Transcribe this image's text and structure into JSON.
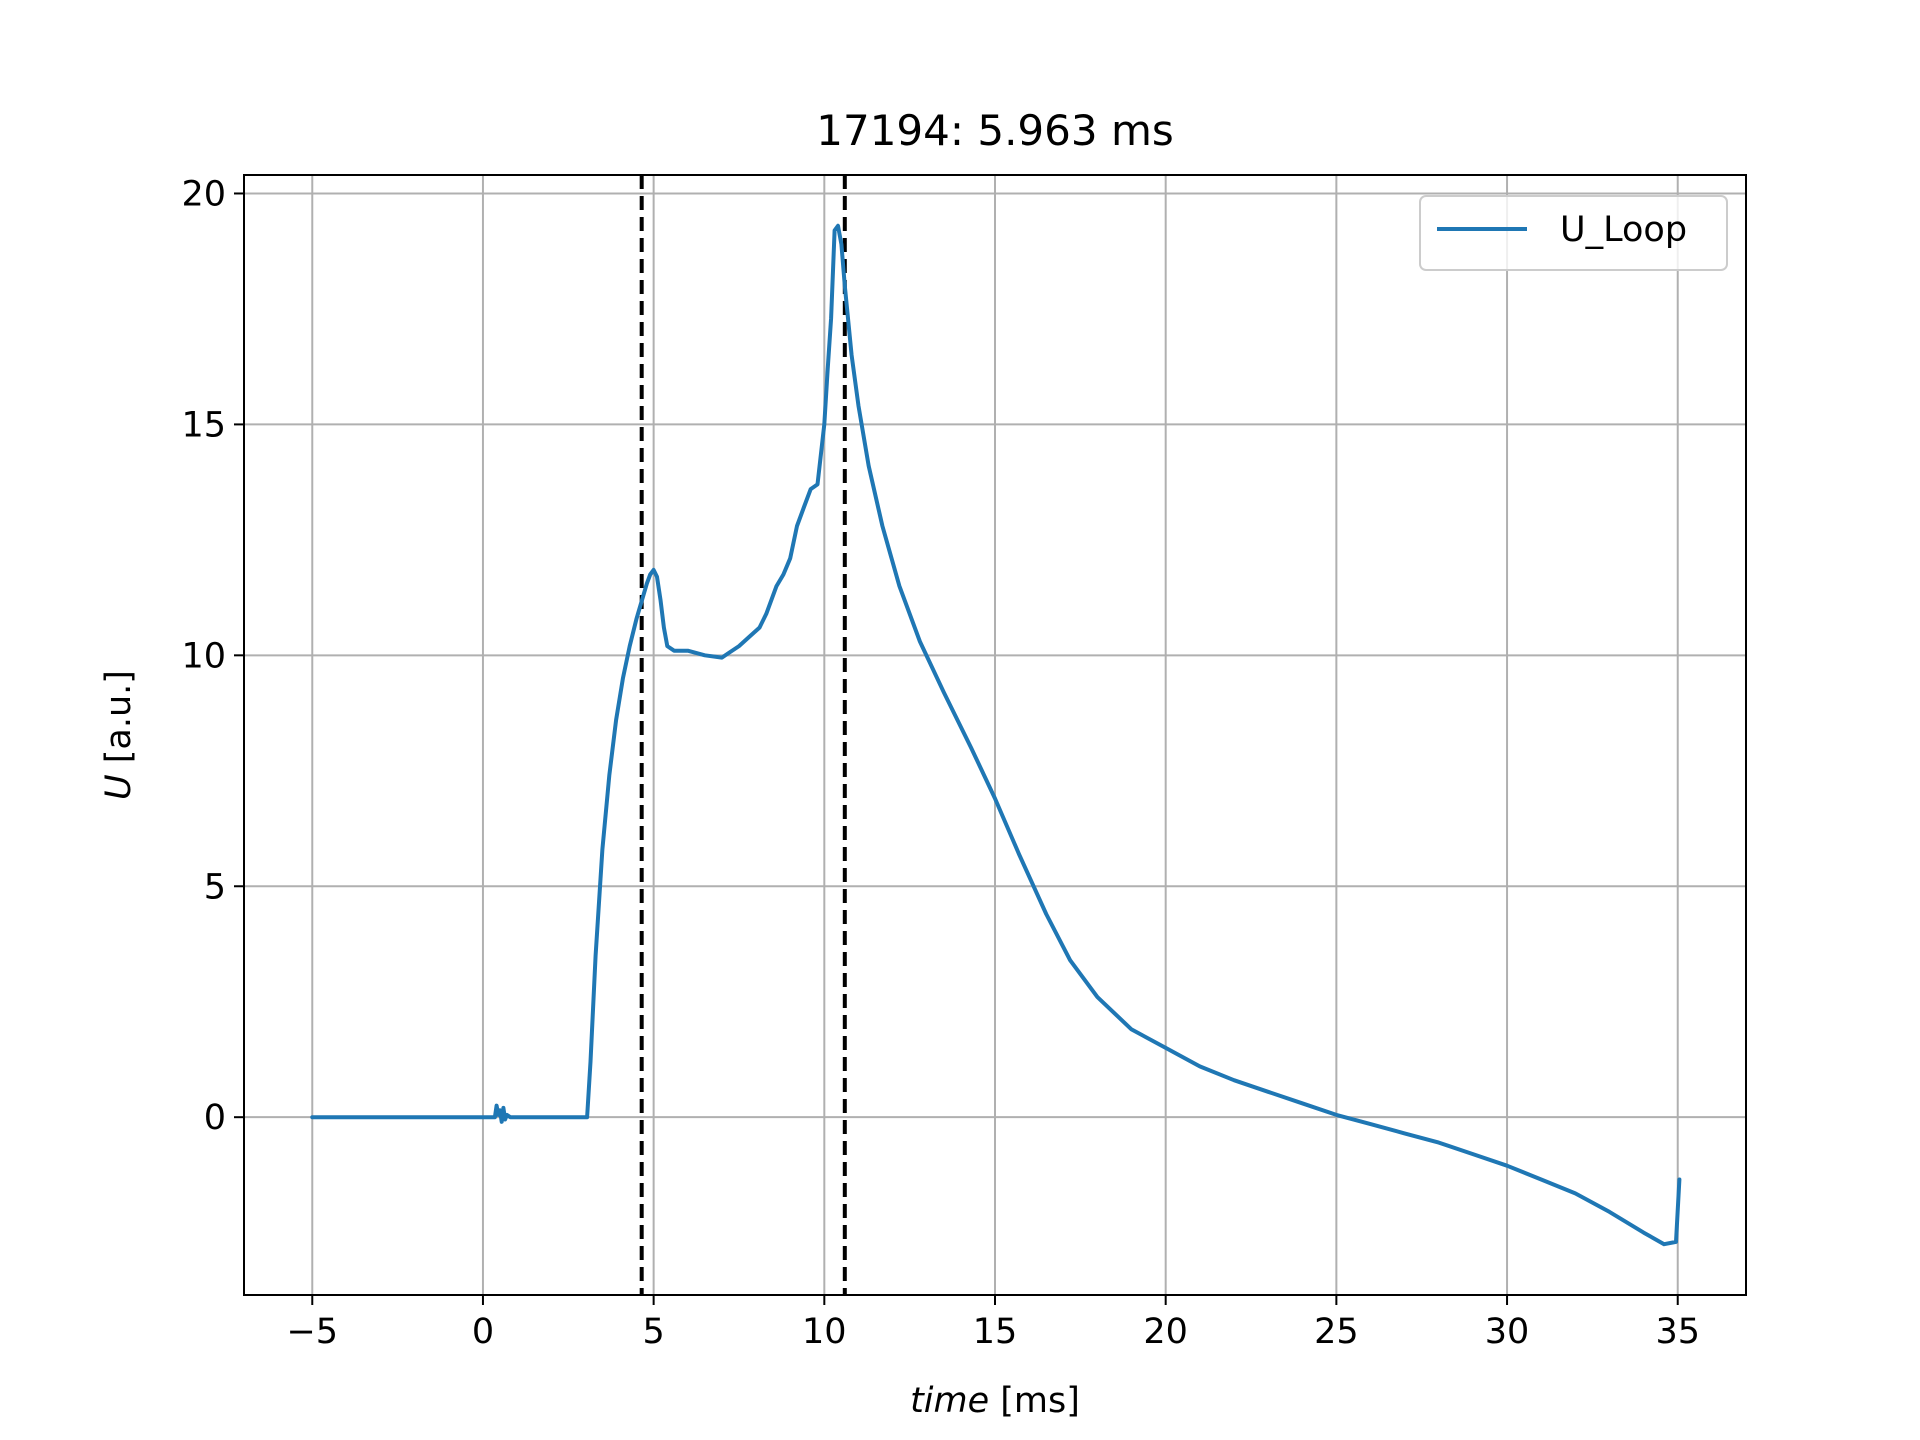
{
  "chart_data": {
    "type": "line",
    "title": "17194: 5.963 ms",
    "xlabel_italic": "time",
    "xlabel_unit": " [ms]",
    "ylabel_italic": "U",
    "ylabel_unit": " [a.u.]",
    "xlim": [
      -7,
      37
    ],
    "ylim": [
      -3.85,
      20.4
    ],
    "xticks": [
      -5,
      0,
      5,
      10,
      15,
      20,
      25,
      30,
      35
    ],
    "xtick_labels": [
      "−5",
      "0",
      "5",
      "10",
      "15",
      "20",
      "25",
      "30",
      "35"
    ],
    "yticks": [
      0,
      5,
      10,
      15,
      20
    ],
    "ytick_labels": [
      "0",
      "5",
      "10",
      "15",
      "20"
    ],
    "grid": true,
    "legend_position": "top-right",
    "series": [
      {
        "name": "U_Loop",
        "color": "#1f77b4",
        "x": [
          -5,
          -2,
          0,
          0.35,
          0.4,
          0.45,
          0.5,
          0.55,
          0.6,
          0.65,
          0.7,
          0.8,
          1.5,
          2.5,
          3.05,
          3.15,
          3.3,
          3.5,
          3.7,
          3.9,
          4.1,
          4.3,
          4.5,
          4.7,
          4.8,
          4.9,
          5.0,
          5.1,
          5.2,
          5.3,
          5.4,
          5.6,
          6.0,
          6.5,
          7.0,
          7.2,
          7.5,
          7.8,
          8.1,
          8.3,
          8.6,
          8.8,
          9.0,
          9.2,
          9.4,
          9.6,
          9.8,
          10.0,
          10.1,
          10.2,
          10.3,
          10.4,
          10.5,
          10.6,
          10.8,
          11.0,
          11.3,
          11.7,
          12.2,
          12.8,
          13.5,
          14.3,
          15.0,
          15.7,
          16.5,
          17.2,
          18.0,
          19.0,
          20.0,
          21.0,
          22.0,
          23.0,
          24.0,
          25.0,
          26.0,
          27.0,
          28.0,
          29.0,
          30.0,
          31.0,
          32.0,
          33.0,
          34.0,
          34.6,
          34.95,
          35.05
        ],
        "y": [
          0,
          0,
          0,
          0,
          0.25,
          0.05,
          0.15,
          -0.1,
          0.2,
          -0.05,
          0.05,
          0,
          0,
          0,
          0,
          1.2,
          3.5,
          5.8,
          7.4,
          8.6,
          9.5,
          10.2,
          10.8,
          11.3,
          11.55,
          11.75,
          11.85,
          11.7,
          11.2,
          10.6,
          10.2,
          10.1,
          10.1,
          10.0,
          9.95,
          10.05,
          10.2,
          10.4,
          10.6,
          10.9,
          11.5,
          11.75,
          12.1,
          12.8,
          13.2,
          13.6,
          13.7,
          15.0,
          16.2,
          17.3,
          19.2,
          19.3,
          18.9,
          18.0,
          16.5,
          15.4,
          14.1,
          12.8,
          11.5,
          10.3,
          9.2,
          8.0,
          6.9,
          5.7,
          4.4,
          3.4,
          2.6,
          1.9,
          1.5,
          1.1,
          0.8,
          0.55,
          0.3,
          0.05,
          -0.15,
          -0.35,
          -0.55,
          -0.8,
          -1.05,
          -1.35,
          -1.65,
          -2.05,
          -2.5,
          -2.75,
          -2.7,
          -1.35
        ]
      }
    ],
    "vlines": [
      {
        "x": 4.65,
        "color": "#000000",
        "style": "dashed"
      },
      {
        "x": 10.6,
        "color": "#000000",
        "style": "dashed"
      }
    ]
  }
}
